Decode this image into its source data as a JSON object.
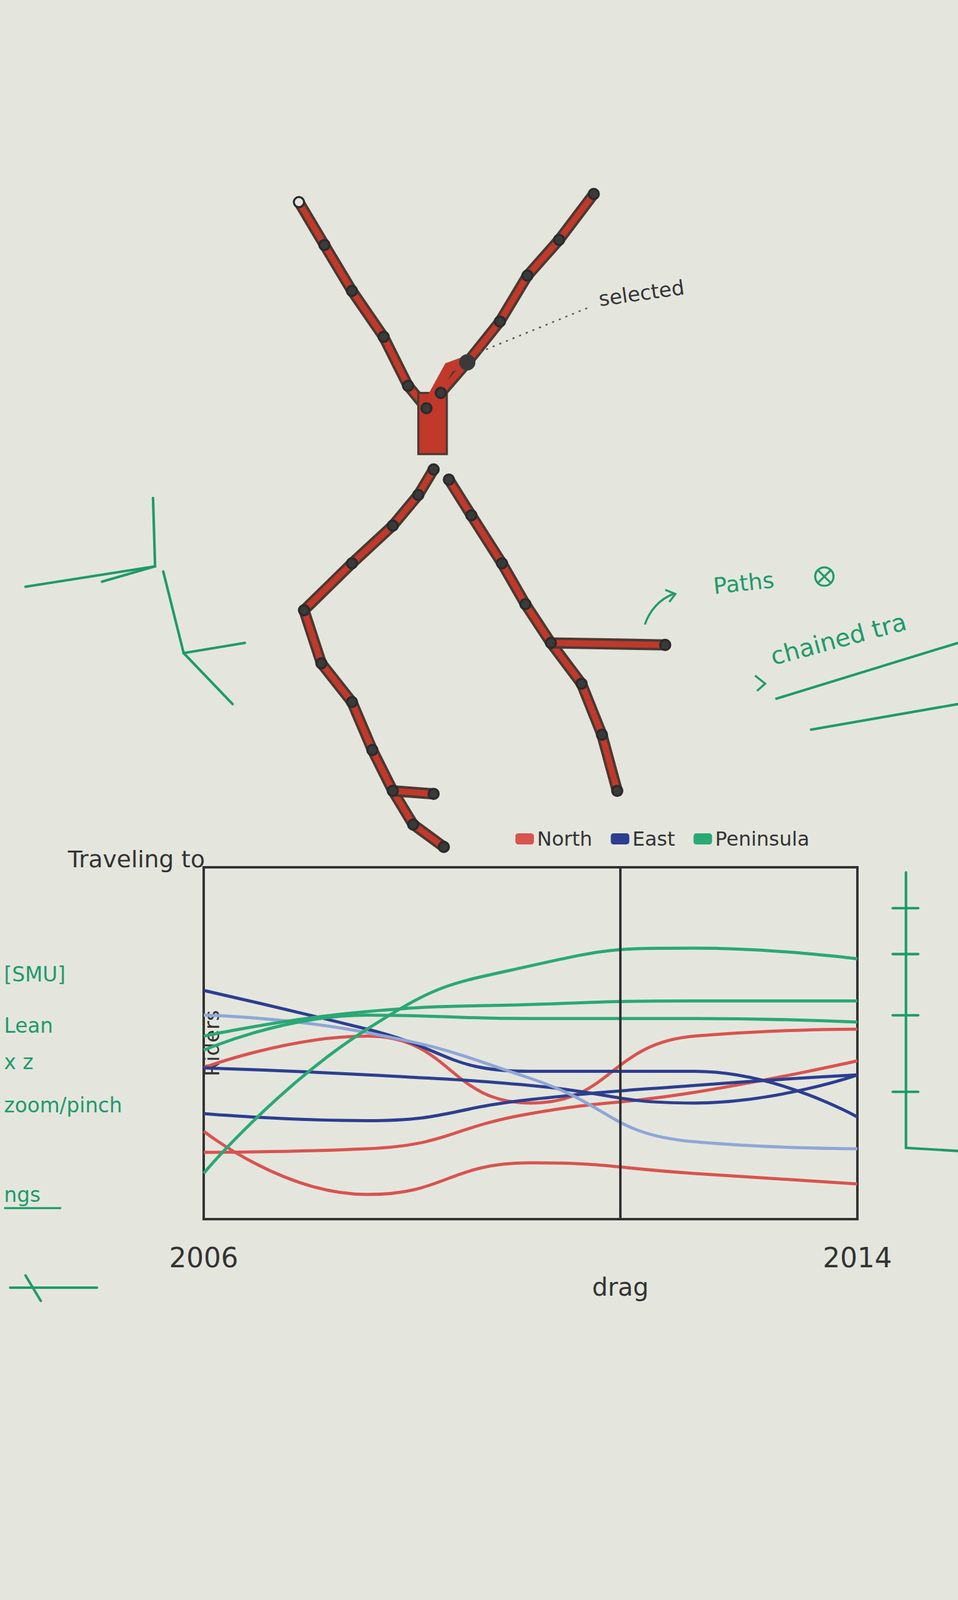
{
  "chart_data": {
    "type": "line",
    "title": "Traveling to",
    "y_label": "Riders",
    "x": [
      2006,
      2008,
      2010,
      2012,
      2014
    ],
    "xlim": [
      2006,
      2014
    ],
    "xticks": [
      2006,
      2014
    ],
    "ylim": [
      0,
      100
    ],
    "grid": false,
    "legend": "top",
    "tick_labels": "x",
    "cursor": {
      "x": 2011.1,
      "label": "drag"
    },
    "series": [
      {
        "name": "North",
        "color": "#d9534f",
        "values": [
          43,
          52,
          33,
          52,
          54
        ]
      },
      {
        "name": "North",
        "color": "#d9534f",
        "values": [
          19,
          20,
          30,
          36,
          45
        ]
      },
      {
        "name": "North",
        "color": "#d9534f",
        "values": [
          25,
          7,
          16,
          13,
          10
        ]
      },
      {
        "name": "East",
        "color": "#2c3e8f",
        "values": [
          65,
          54,
          42,
          42,
          29
        ]
      },
      {
        "name": "East",
        "color": "#2c3e8f",
        "values": [
          43,
          41,
          38,
          33,
          41
        ]
      },
      {
        "name": "East",
        "color": "#2c3e8f",
        "values": [
          30,
          28,
          34,
          38,
          41
        ]
      },
      {
        "name": "East",
        "color": "#8fa6d6",
        "values": [
          58,
          53,
          40,
          22,
          20
        ]
      },
      {
        "name": "Peninsula",
        "color": "#2aa876",
        "values": [
          13,
          54,
          72,
          77,
          74
        ]
      },
      {
        "name": "Peninsula",
        "color": "#2aa876",
        "values": [
          52,
          59,
          61,
          62,
          62
        ]
      },
      {
        "name": "Peninsula",
        "color": "#2aa876",
        "values": [
          48,
          58,
          57,
          57,
          56
        ]
      }
    ]
  },
  "map": {
    "selected_label": "selected",
    "paths_label": "Paths",
    "chained_label": "chained tra"
  },
  "side_notes": [
    "[SMU]",
    "Lean",
    "x z",
    "zoom/pinch",
    "ngs"
  ]
}
